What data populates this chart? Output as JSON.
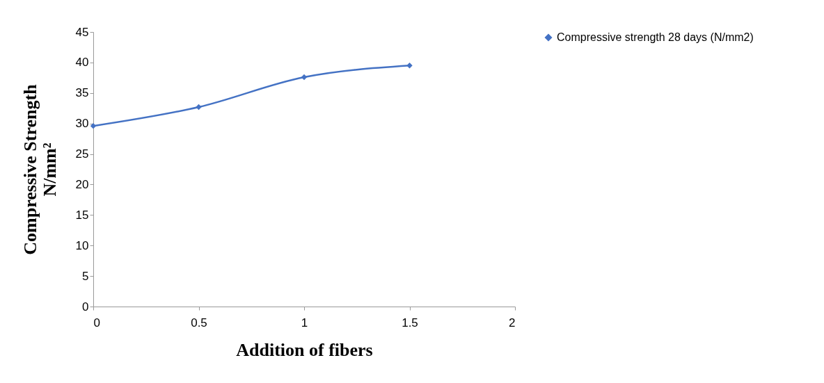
{
  "chart_data": {
    "type": "line",
    "xlabel": "Addition of fibers",
    "ylabel": "Compressive Strength N/mm²",
    "x": [
      0,
      0.5,
      1,
      1.5
    ],
    "series": [
      {
        "name": "Compressive strength 28 days (N/mm2)",
        "color": "#4472c4",
        "values": [
          29.6,
          32.7,
          37.6,
          39.5
        ]
      }
    ],
    "xlim": [
      0,
      2
    ],
    "xticks": [
      0,
      0.5,
      1,
      1.5,
      2
    ],
    "ylim": [
      0,
      45
    ],
    "yticks": [
      0,
      5,
      10,
      15,
      20,
      25,
      30,
      35,
      40,
      45
    ],
    "grid": false,
    "legend": "right",
    "marker": "diamond",
    "line_style": "solid"
  }
}
